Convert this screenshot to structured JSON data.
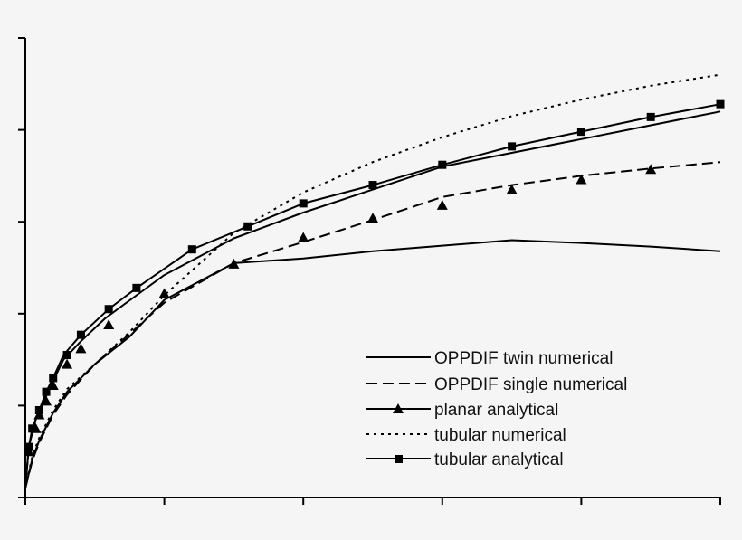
{
  "chart_data": {
    "type": "line",
    "title": "",
    "xlabel": "",
    "ylabel": "",
    "xlim": [
      0,
      10
    ],
    "ylim": [
      0,
      5
    ],
    "x_ticks": [
      0,
      2,
      4,
      6,
      8,
      10
    ],
    "y_ticks": [
      0,
      1,
      2,
      3,
      4,
      5
    ],
    "grid": false,
    "legend_position": "bottom-right",
    "series": [
      {
        "name": "OPPDIF twin numerical",
        "style": "solid",
        "marker": "none",
        "x": [
          0,
          0.1,
          0.2,
          0.4,
          0.6,
          1.0,
          1.5,
          2.0,
          3.0,
          4.0,
          5.0,
          6.0,
          7.0,
          8.0,
          9.0,
          10.0
        ],
        "y": [
          0.1,
          0.42,
          0.62,
          0.92,
          1.15,
          1.45,
          1.75,
          2.15,
          2.55,
          2.6,
          2.68,
          2.74,
          2.8,
          2.77,
          2.73,
          2.68
        ]
      },
      {
        "name": "OPPDIF single numerical",
        "style": "dashed",
        "marker": "none",
        "x": [
          0,
          0.1,
          0.2,
          0.4,
          0.6,
          1.0,
          1.5,
          2.0,
          3.0,
          4.0,
          5.0,
          6.0,
          7.0,
          8.0,
          9.0,
          10.0
        ],
        "y": [
          0.1,
          0.4,
          0.6,
          0.9,
          1.12,
          1.45,
          1.78,
          2.12,
          2.55,
          2.78,
          3.02,
          3.27,
          3.4,
          3.5,
          3.58,
          3.65
        ]
      },
      {
        "name": "planar analytical",
        "style": "solid",
        "marker": "triangle",
        "x": [
          0,
          0.05,
          0.15,
          0.3,
          0.4,
          0.55,
          0.8,
          1.15,
          1.6,
          2.0,
          3.0,
          4.0,
          5.0,
          6.0,
          7.0,
          8.0,
          9.0,
          10.0
        ],
        "y": [
          0.1,
          0.55,
          0.85,
          1.1,
          1.27,
          1.5,
          1.7,
          1.95,
          2.2,
          2.42,
          2.82,
          3.1,
          3.35,
          3.6,
          3.75,
          3.9,
          4.05,
          4.2
        ],
        "markers_x": [
          0.05,
          0.15,
          0.2,
          0.3,
          0.4,
          0.6,
          0.8,
          1.2,
          2.0,
          3.0,
          4.0,
          5.0,
          6.0,
          7.0,
          8.0,
          9.0
        ],
        "markers_y": [
          0.5,
          0.75,
          0.9,
          1.05,
          1.22,
          1.45,
          1.62,
          1.88,
          2.22,
          2.54,
          2.83,
          3.04,
          3.18,
          3.35,
          3.46,
          3.57
        ]
      },
      {
        "name": "tubular numerical",
        "style": "dotted",
        "marker": "none",
        "x": [
          0,
          0.1,
          0.2,
          0.4,
          0.6,
          1.0,
          1.5,
          2.0,
          3.0,
          4.0,
          5.0,
          6.0,
          7.0,
          8.0,
          9.0,
          10.0
        ],
        "y": [
          0.1,
          0.45,
          0.65,
          0.95,
          1.18,
          1.45,
          1.8,
          2.2,
          2.88,
          3.32,
          3.65,
          3.92,
          4.15,
          4.33,
          4.48,
          4.6
        ]
      },
      {
        "name": "tubular analytical",
        "style": "solid",
        "marker": "square",
        "x": [
          0,
          0.05,
          0.1,
          0.2,
          0.3,
          0.4,
          0.55,
          0.8,
          1.2,
          1.6,
          2.4,
          3.2,
          4.0,
          5.0,
          6.0,
          7.0,
          8.0,
          9.0,
          10.0
        ],
        "y": [
          0.1,
          0.55,
          0.75,
          0.95,
          1.15,
          1.3,
          1.55,
          1.77,
          2.05,
          2.28,
          2.7,
          2.95,
          3.2,
          3.4,
          3.62,
          3.82,
          3.98,
          4.14,
          4.28
        ],
        "markers_x": [
          0.05,
          0.1,
          0.2,
          0.3,
          0.4,
          0.6,
          0.8,
          1.2,
          1.6,
          2.4,
          3.2,
          4.0,
          5.0,
          6.0,
          7.0,
          8.0,
          9.0,
          10.0
        ],
        "markers_y": [
          0.55,
          0.75,
          0.95,
          1.15,
          1.3,
          1.55,
          1.77,
          2.05,
          2.28,
          2.7,
          2.95,
          3.2,
          3.4,
          3.62,
          3.82,
          3.98,
          4.14,
          4.28
        ]
      }
    ]
  }
}
